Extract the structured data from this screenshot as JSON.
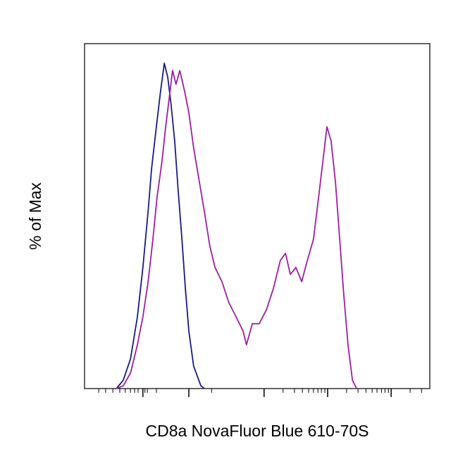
{
  "chart_data": {
    "type": "line",
    "xlabel": "CD8a NovaFluor Blue 610-70S",
    "ylabel": "% of Max",
    "xlim": [
      0,
      100
    ],
    "ylim": [
      0,
      100
    ],
    "xticks": [
      16.9,
      30.2,
      52.0,
      70.4,
      88.8
    ],
    "xminorticks": [
      4.1,
      6.1,
      8.2,
      10.2,
      11.8,
      13.3,
      14.5,
      15.5,
      17.5,
      18.2,
      20.8,
      36.8,
      57.5,
      60.8,
      63.1,
      64.9,
      66.3,
      67.6,
      68.6,
      69.6,
      75.9,
      79.2,
      81.5,
      83.3,
      84.7,
      86.0,
      87.0,
      88.0,
      94.3,
      97.6
    ],
    "series": [
      {
        "color": "#1a1a80",
        "x": [
          9.2,
          11.2,
          13.3,
          15.3,
          16.9,
          18.4,
          19.4,
          20.8,
          22.0,
          23.1,
          24.1,
          25.1,
          26.1,
          27.1,
          28.2,
          29.2,
          30.2,
          31.6,
          33.7,
          34.7
        ],
        "values": [
          0,
          2.4,
          8.6,
          20.8,
          35.1,
          51.4,
          63.7,
          75.9,
          86.1,
          94.3,
          90.2,
          82.0,
          71.8,
          57.6,
          43.3,
          29.0,
          16.7,
          6.5,
          0.8,
          0
        ]
      },
      {
        "color": "#9b1f9e",
        "x": [
          9.2,
          11.2,
          13.3,
          15.3,
          16.9,
          18.4,
          19.8,
          21.0,
          22.4,
          23.5,
          24.5,
          25.5,
          26.5,
          27.6,
          29.0,
          30.2,
          31.6,
          33.3,
          34.7,
          36.3,
          37.8,
          39.8,
          41.8,
          43.9,
          45.9,
          46.9,
          48.6,
          50.6,
          52.7,
          54.7,
          56.7,
          58.2,
          59.6,
          61.2,
          62.9,
          64.5,
          66.3,
          67.8,
          69.0,
          70.2,
          71.4,
          72.7,
          73.9,
          75.1,
          76.3,
          77.6,
          78.8
        ],
        "values": [
          0,
          0.8,
          4.5,
          12.7,
          20.8,
          31.0,
          43.3,
          55.5,
          65.7,
          75.9,
          84.1,
          92.2,
          88.2,
          92.2,
          86.1,
          80.0,
          69.8,
          59.6,
          51.4,
          41.2,
          35.1,
          31.0,
          24.9,
          20.8,
          16.7,
          12.7,
          18.8,
          18.8,
          22.9,
          29.0,
          37.1,
          39.2,
          33.1,
          35.1,
          31.0,
          37.1,
          43.3,
          55.5,
          65.7,
          75.9,
          71.8,
          59.6,
          43.3,
          26.9,
          12.7,
          2.4,
          0
        ]
      }
    ]
  }
}
